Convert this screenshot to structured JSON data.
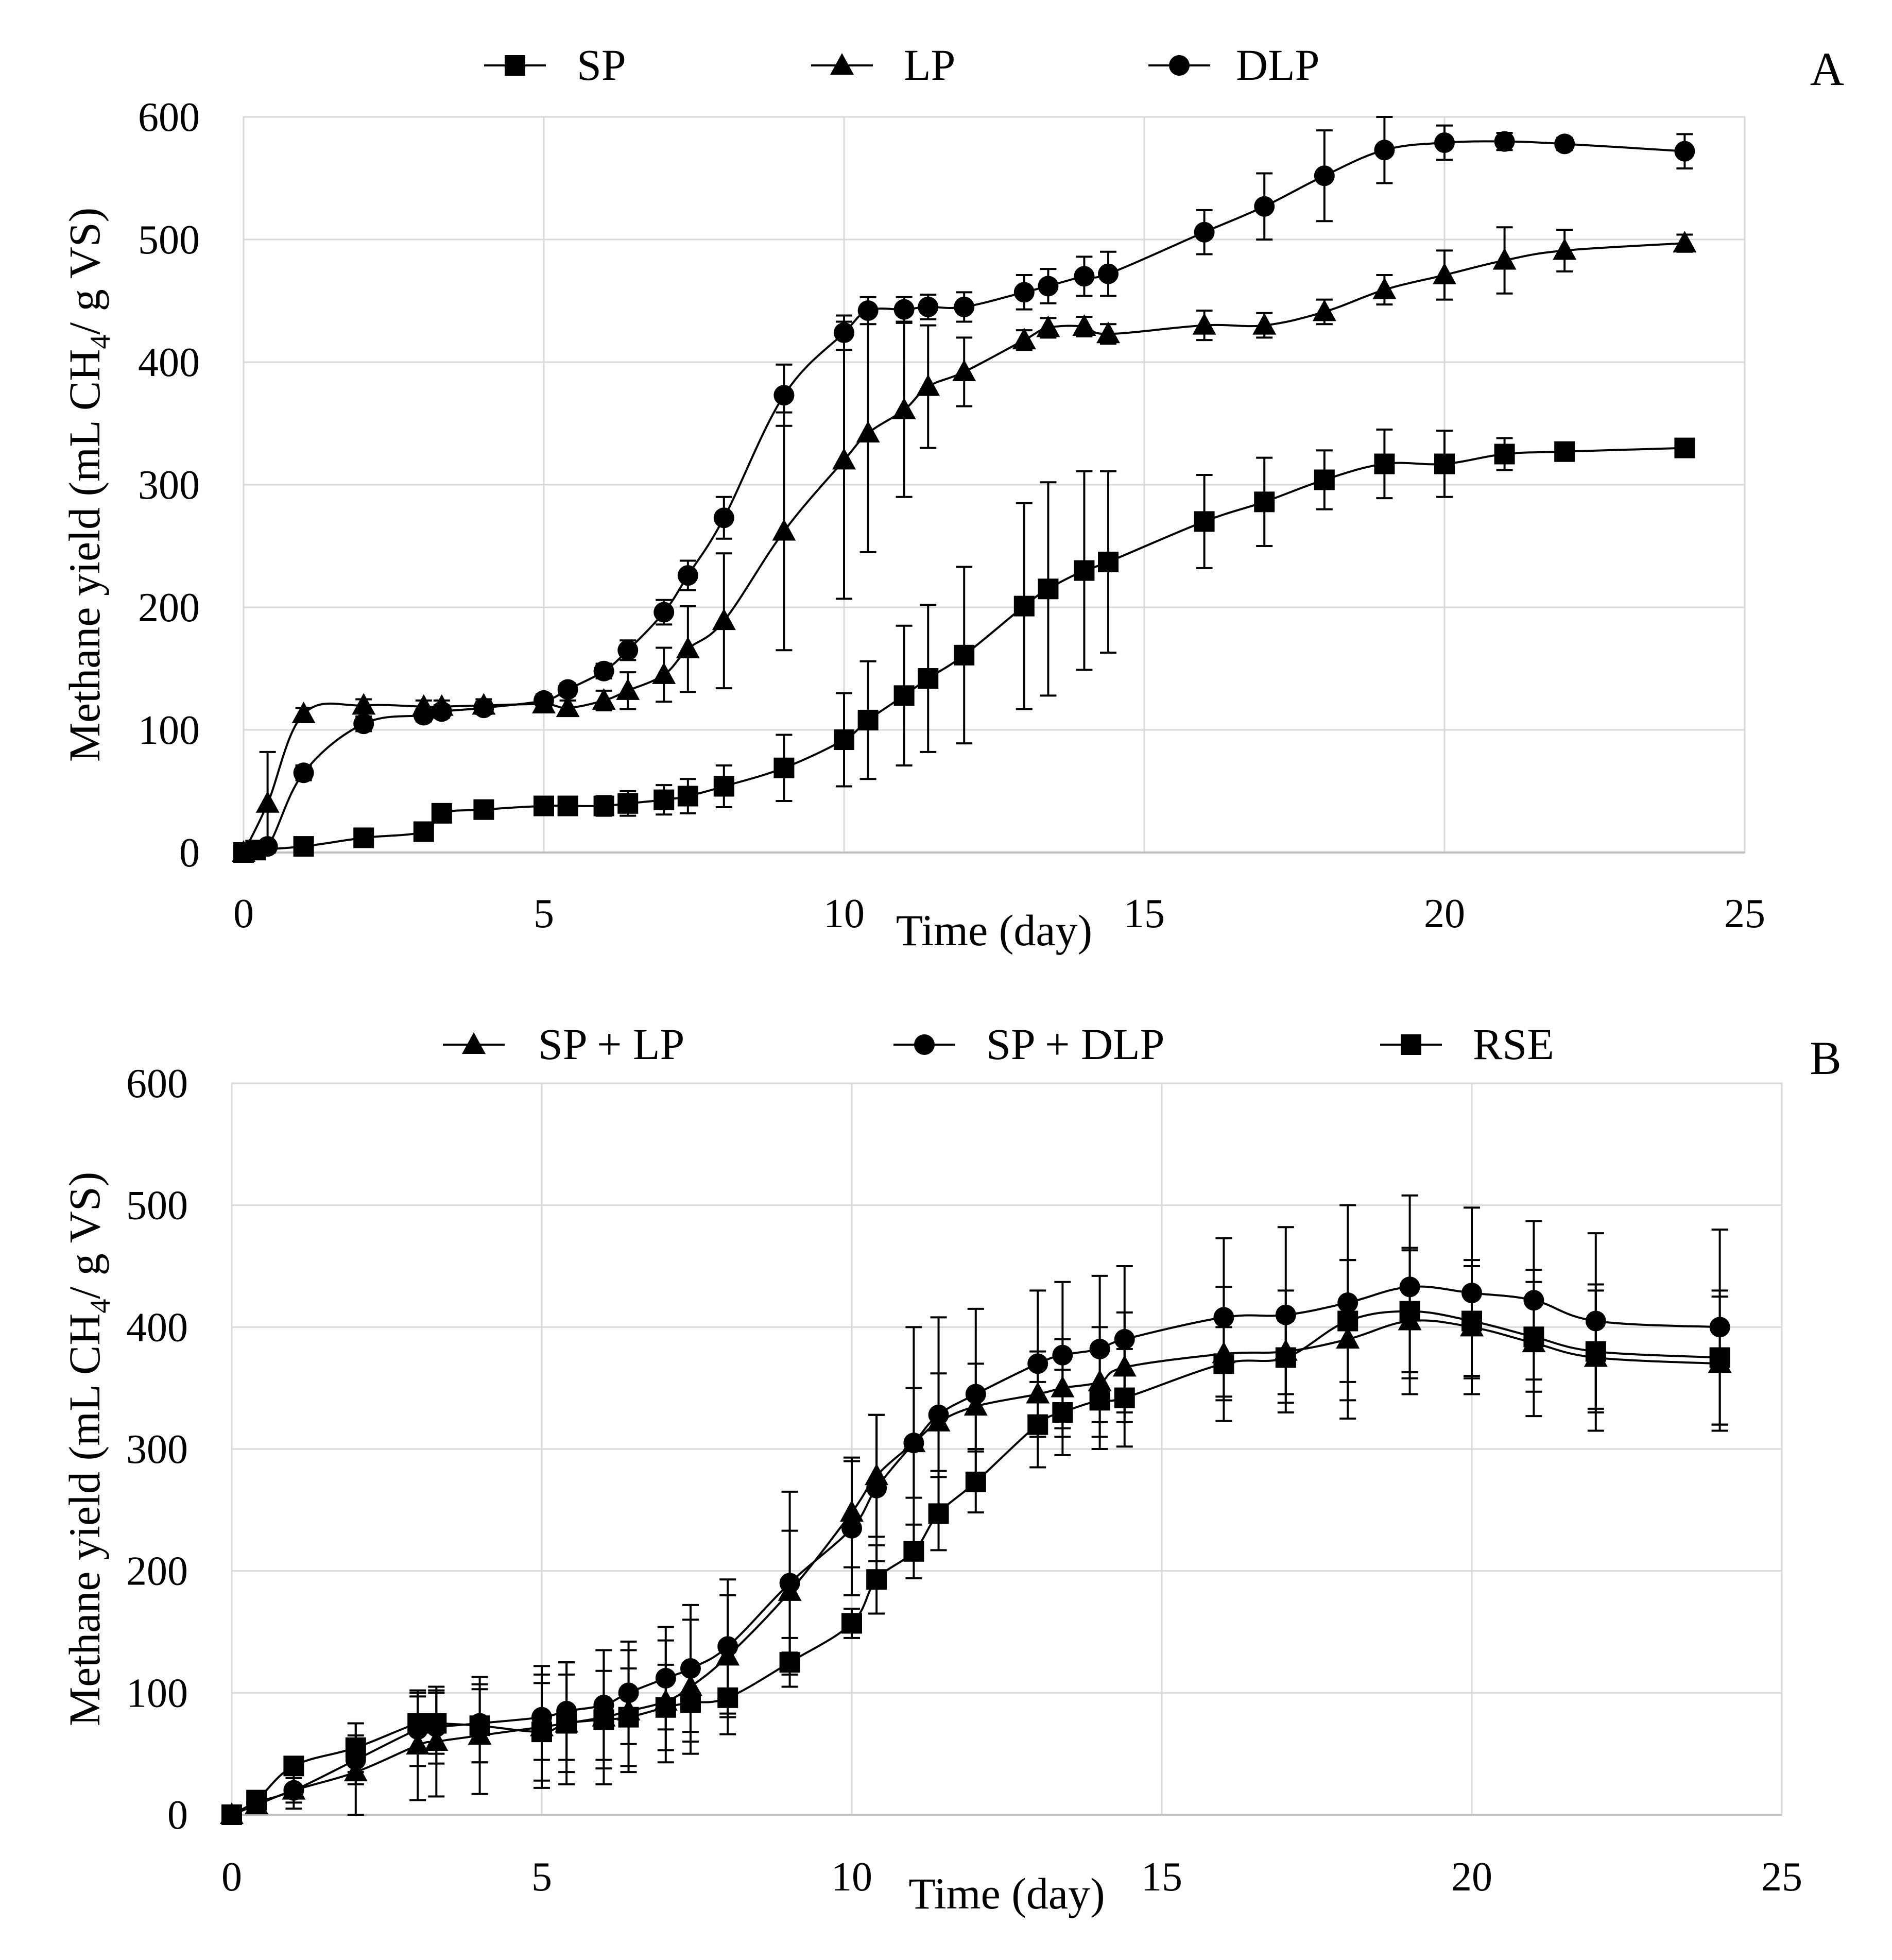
{
  "chart_data": [
    {
      "type": "line",
      "panel_label": "A",
      "xlabel": "Time (day)",
      "ylabel_parts": [
        "Methane yield (mL CH",
        "4",
        "/ g VS)"
      ],
      "xlim": [
        0,
        25
      ],
      "ylim": [
        0,
        600
      ],
      "xticks": [
        0,
        5,
        10,
        15,
        20,
        25
      ],
      "yticks": [
        0,
        100,
        200,
        300,
        400,
        500,
        600
      ],
      "grid": true,
      "legend_position": "top",
      "series": [
        {
          "name": "SP",
          "marker": "square",
          "x": [
            0,
            0.2,
            1,
            2,
            3,
            3.3,
            4,
            5,
            5.4,
            6,
            6.4,
            7,
            7.4,
            8,
            9,
            10,
            10.4,
            11,
            11.4,
            12,
            13,
            13.4,
            14,
            14.4,
            16,
            17,
            18,
            19,
            20,
            21,
            22,
            24
          ],
          "y": [
            0,
            2,
            5,
            12,
            17,
            32,
            35,
            38,
            38,
            38,
            40,
            43,
            46,
            54,
            69,
            92,
            108,
            128,
            142,
            161,
            201,
            215,
            230,
            237,
            270,
            286,
            304,
            317,
            317,
            325,
            327,
            330
          ],
          "err": [
            0,
            2,
            3,
            4,
            4,
            5,
            5,
            6,
            6,
            8,
            10,
            12,
            14,
            17,
            27,
            38,
            48,
            57,
            60,
            72,
            84,
            87,
            81,
            74,
            38,
            36,
            24,
            28,
            27,
            13,
            5,
            4
          ]
        },
        {
          "name": "LP",
          "marker": "triangle",
          "x": [
            0,
            0.4,
            1,
            2,
            3,
            3.3,
            4,
            5,
            5.4,
            6,
            6.4,
            7,
            7.4,
            8,
            9,
            10,
            10.4,
            11,
            11.4,
            12,
            13,
            13.4,
            14,
            14.4,
            16,
            17,
            18,
            19,
            20,
            21,
            22,
            24
          ],
          "y": [
            0,
            40,
            113,
            120,
            119,
            119,
            120,
            121,
            118,
            124,
            132,
            145,
            166,
            189,
            262,
            320,
            342,
            361,
            380,
            392,
            418,
            428,
            429,
            423,
            430,
            430,
            441,
            459,
            471,
            483,
            491,
            497
          ],
          "err": [
            0,
            42,
            5,
            5,
            5,
            5,
            5,
            6,
            6,
            8,
            15,
            22,
            35,
            55,
            97,
            113,
            97,
            71,
            50,
            28,
            8,
            8,
            8,
            8,
            12,
            10,
            10,
            12,
            20,
            27,
            17,
            7
          ]
        },
        {
          "name": "DLP",
          "marker": "circle",
          "x": [
            0,
            0.4,
            1,
            2,
            3,
            3.3,
            4,
            5,
            5.4,
            6,
            6.4,
            7,
            7.4,
            8,
            9,
            10,
            10.4,
            11,
            11.4,
            12,
            13,
            13.4,
            14,
            14.4,
            16,
            17,
            18,
            19,
            20,
            21,
            22,
            24
          ],
          "y": [
            0,
            5,
            65,
            105,
            112,
            115,
            118,
            124,
            133,
            148,
            165,
            196,
            226,
            273,
            373,
            424,
            442,
            443,
            445,
            445,
            457,
            462,
            470,
            472,
            506,
            527,
            552,
            573,
            579,
            580,
            578,
            572
          ],
          "err": [
            0,
            4,
            6,
            6,
            5,
            5,
            5,
            5,
            5,
            6,
            8,
            10,
            12,
            17,
            25,
            14,
            11,
            10,
            10,
            12,
            14,
            14,
            16,
            18,
            18,
            27,
            37,
            27,
            14,
            7,
            5,
            14
          ]
        }
      ]
    },
    {
      "type": "line",
      "panel_label": "B",
      "xlabel": "Time (day)",
      "ylabel_parts": [
        "Methane yield (mL CH",
        "4",
        "/ g VS)"
      ],
      "xlim": [
        0,
        25
      ],
      "ylim": [
        0,
        600
      ],
      "xticks": [
        0,
        5,
        10,
        15,
        20,
        25
      ],
      "yticks": [
        0,
        100,
        200,
        300,
        400,
        500,
        600
      ],
      "grid": true,
      "legend_position": "top",
      "series": [
        {
          "name": "SP + LP",
          "marker": "triangle",
          "x": [
            0,
            0.4,
            1,
            2,
            3,
            3.3,
            4,
            5,
            5.4,
            6,
            6.4,
            7,
            7.4,
            8,
            9,
            10,
            10.4,
            11,
            11.4,
            12,
            13,
            13.4,
            14,
            14.4,
            16,
            17,
            18,
            19,
            20,
            21,
            22,
            24
          ],
          "y": [
            0,
            8,
            20,
            35,
            57,
            60,
            65,
            72,
            75,
            80,
            85,
            93,
            105,
            130,
            183,
            248,
            278,
            305,
            322,
            335,
            345,
            350,
            355,
            367,
            378,
            380,
            390,
            405,
            400,
            387,
            375,
            370
          ],
          "err": [
            0,
            5,
            15,
            40,
            45,
            45,
            48,
            50,
            50,
            55,
            50,
            50,
            55,
            50,
            50,
            45,
            50,
            45,
            40,
            35,
            35,
            40,
            45,
            45,
            55,
            50,
            65,
            60,
            55,
            60,
            60,
            55
          ]
        },
        {
          "name": "SP + DLP",
          "marker": "circle",
          "x": [
            0,
            0.4,
            1,
            2,
            3,
            3.3,
            4,
            5,
            5.4,
            6,
            6.4,
            7,
            7.4,
            8,
            9,
            10,
            10.4,
            11,
            11.4,
            12,
            13,
            13.4,
            14,
            14.4,
            16,
            17,
            18,
            19,
            20,
            21,
            22,
            24
          ],
          "y": [
            0,
            10,
            20,
            45,
            70,
            72,
            75,
            80,
            85,
            90,
            100,
            112,
            120,
            138,
            190,
            235,
            268,
            305,
            328,
            345,
            370,
            377,
            382,
            390,
            408,
            410,
            420,
            433,
            428,
            422,
            405,
            400
          ],
          "err": [
            0,
            5,
            10,
            20,
            30,
            30,
            32,
            35,
            40,
            45,
            42,
            42,
            52,
            55,
            75,
            55,
            60,
            95,
            80,
            70,
            60,
            60,
            60,
            60,
            65,
            72,
            80,
            75,
            70,
            65,
            72,
            80
          ]
        },
        {
          "name": "RSE",
          "marker": "square",
          "x": [
            0,
            0.4,
            1,
            2,
            3,
            3.3,
            4,
            5,
            5.4,
            6,
            6.4,
            7,
            7.4,
            8,
            9,
            10,
            10.4,
            11,
            11.4,
            12,
            13,
            13.4,
            14,
            14.4,
            16,
            17,
            18,
            19,
            20,
            21,
            22,
            24
          ],
          "y": [
            0,
            12,
            40,
            55,
            75,
            75,
            73,
            68,
            75,
            78,
            80,
            88,
            92,
            96,
            125,
            157,
            193,
            216,
            247,
            273,
            320,
            330,
            340,
            342,
            370,
            375,
            405,
            413,
            405,
            392,
            380,
            375
          ],
          "err": [
            0,
            4,
            6,
            20,
            22,
            25,
            30,
            40,
            40,
            40,
            40,
            35,
            32,
            30,
            20,
            12,
            28,
            22,
            30,
            25,
            35,
            35,
            40,
            40,
            30,
            30,
            50,
            50,
            45,
            45,
            50,
            55
          ]
        }
      ]
    }
  ]
}
